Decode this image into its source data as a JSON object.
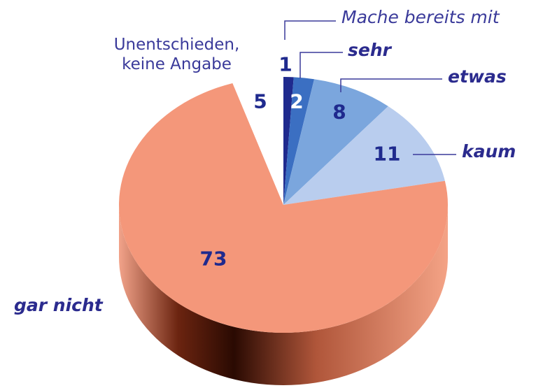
{
  "chart_data": {
    "type": "pie3d",
    "categories": [
      "Mache bereits mit",
      "sehr",
      "etwas",
      "kaum",
      "gar nicht",
      "Unentschieden, keine Angabe"
    ],
    "values": [
      1,
      2,
      8,
      11,
      73,
      5
    ],
    "colors": [
      "#1f2a8e",
      "#3b6fc2",
      "#7ba6dd",
      "#b9cdee",
      "#f4977a",
      "#ffffff"
    ]
  }
}
